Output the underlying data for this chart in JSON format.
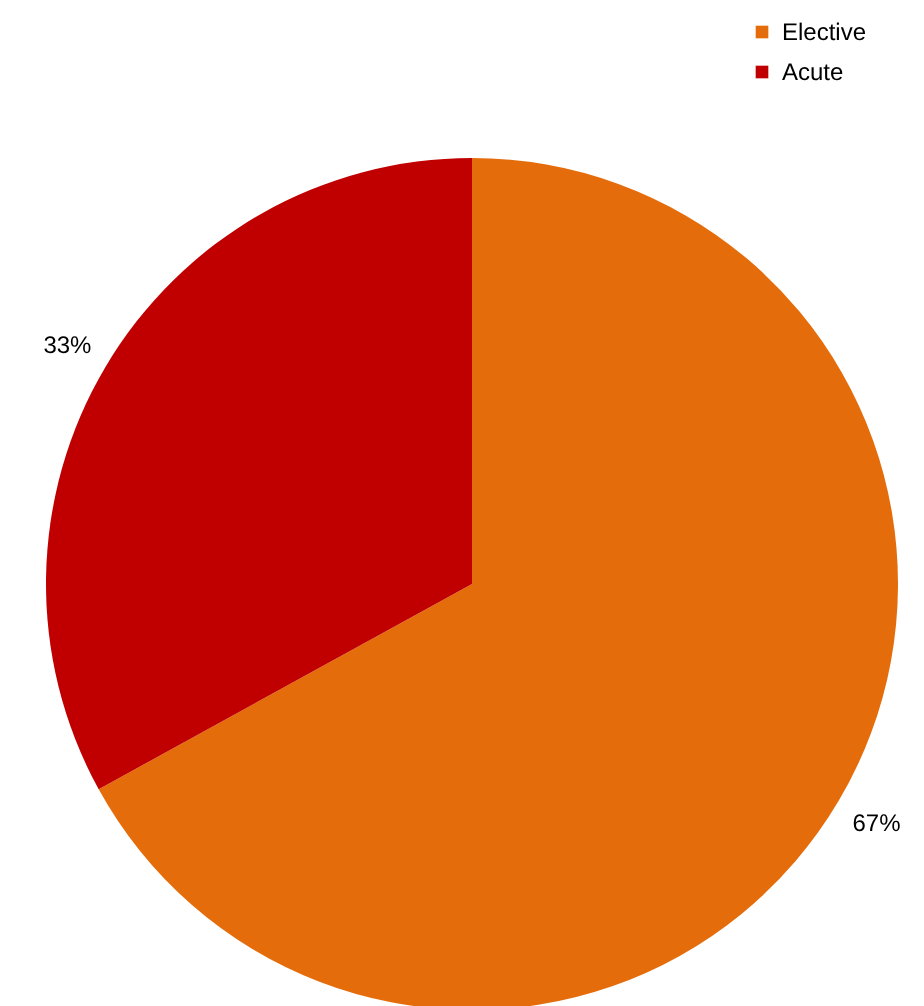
{
  "chart_data": {
    "type": "pie",
    "categories": [
      "Elective",
      "Acute"
    ],
    "values": [
      67,
      33
    ],
    "colors": [
      "#e46c0a",
      "#c00000"
    ],
    "value_labels": [
      "67%",
      "33%"
    ],
    "legend": "top right"
  }
}
